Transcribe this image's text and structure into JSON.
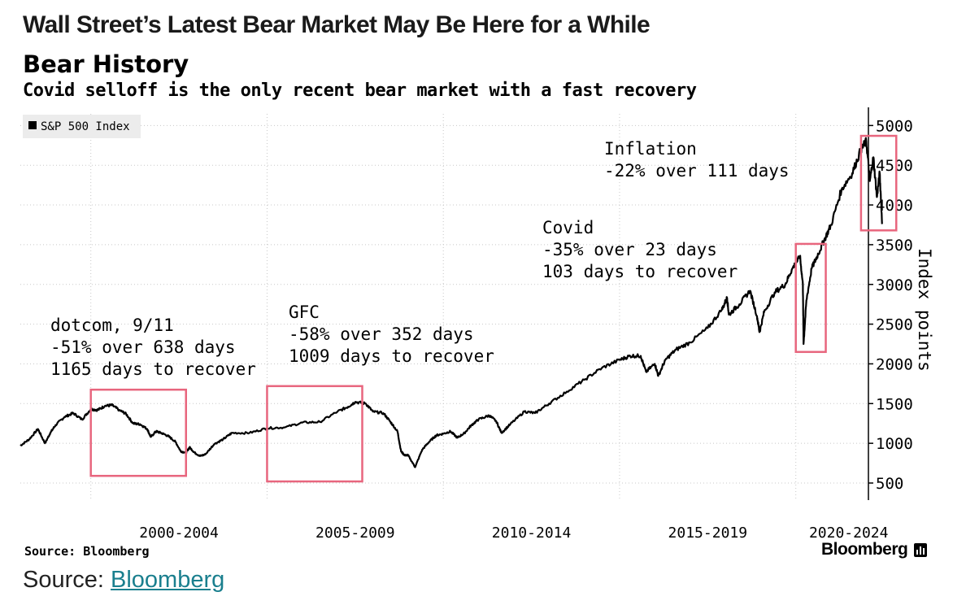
{
  "page": {
    "headline": "Wall Street’s Latest Bear Market May Be Here for a While",
    "source_note": "Source: Bloomberg",
    "brand": "Bloomberg",
    "brand_icon": "bar-chart-icon",
    "caption_prefix": "Source:",
    "caption_link": "Bloomberg",
    "colors": {
      "line": "#000000",
      "box": "#e8667e",
      "grid": "#c8c8c8",
      "legend_bg": "#ececec",
      "link": "#1a7f8e"
    }
  },
  "chart_data": {
    "type": "line",
    "title": "Bear History",
    "subtitle": "Covid selloff is the only recent bear market with a fast recovery",
    "ylabel": "Index points",
    "xlabel": "",
    "ylim": [
      500,
      5000
    ],
    "yticks": [
      500,
      1000,
      1500,
      2000,
      2500,
      3000,
      3500,
      4000,
      4500,
      5000
    ],
    "xlim": [
      1998.0,
      2022.5
    ],
    "xticks": [
      {
        "label": "2000-2004",
        "x": 2002.5
      },
      {
        "label": "2005-2009",
        "x": 2007.5
      },
      {
        "label": "2010-2014",
        "x": 2012.5
      },
      {
        "label": "2015-2019",
        "x": 2017.5
      },
      {
        "label": "2020-2024",
        "x": 2021.5
      }
    ],
    "grid": true,
    "legend": {
      "placement": "top-left",
      "entries": [
        "S&P 500 Index"
      ]
    },
    "series": [
      {
        "name": "S&P 500 Index",
        "x": [
          1998.0,
          1998.25,
          1998.5,
          1998.7,
          1998.85,
          1999.0,
          1999.25,
          1999.5,
          1999.75,
          2000.0,
          2000.2,
          2000.4,
          2000.6,
          2000.8,
          2001.0,
          2001.2,
          2001.4,
          2001.6,
          2001.7,
          2001.85,
          2002.0,
          2002.2,
          2002.4,
          2002.55,
          2002.7,
          2002.8,
          2002.95,
          2003.1,
          2003.25,
          2003.5,
          2003.75,
          2004.0,
          2004.5,
          2005.0,
          2005.5,
          2006.0,
          2006.5,
          2007.0,
          2007.3,
          2007.5,
          2007.8,
          2008.0,
          2008.3,
          2008.5,
          2008.7,
          2008.8,
          2008.9,
          2009.0,
          2009.2,
          2009.4,
          2009.6,
          2009.8,
          2010.0,
          2010.2,
          2010.4,
          2010.6,
          2010.8,
          2011.0,
          2011.3,
          2011.5,
          2011.65,
          2011.9,
          2012.3,
          2012.6,
          2013.0,
          2013.5,
          2014.0,
          2014.5,
          2015.0,
          2015.3,
          2015.6,
          2015.75,
          2016.0,
          2016.1,
          2016.3,
          2016.6,
          2017.0,
          2017.5,
          2017.9,
          2018.05,
          2018.1,
          2018.4,
          2018.7,
          2018.9,
          2018.97,
          2019.1,
          2019.4,
          2019.7,
          2019.9,
          2020.12,
          2020.2,
          2020.22,
          2020.3,
          2020.45,
          2020.6,
          2020.8,
          2021.0,
          2021.3,
          2021.6,
          2021.85,
          2022.0,
          2022.1,
          2022.2,
          2022.3,
          2022.38,
          2022.45
        ],
        "values": [
          970,
          1050,
          1180,
          1000,
          1130,
          1230,
          1330,
          1380,
          1300,
          1430,
          1420,
          1470,
          1480,
          1420,
          1370,
          1250,
          1240,
          1180,
          1080,
          1150,
          1130,
          1090,
          1020,
          900,
          880,
          950,
          880,
          840,
          860,
          990,
          1050,
          1130,
          1130,
          1190,
          1200,
          1260,
          1270,
          1400,
          1460,
          1520,
          1500,
          1400,
          1380,
          1270,
          1150,
          900,
          850,
          850,
          700,
          920,
          1020,
          1100,
          1120,
          1150,
          1070,
          1130,
          1230,
          1300,
          1350,
          1280,
          1130,
          1240,
          1400,
          1380,
          1500,
          1650,
          1800,
          1950,
          2050,
          2100,
          2100,
          1900,
          2000,
          1850,
          2050,
          2180,
          2270,
          2450,
          2680,
          2830,
          2620,
          2750,
          2920,
          2600,
          2400,
          2650,
          2900,
          3000,
          3200,
          3350,
          3000,
          2250,
          2800,
          3200,
          3350,
          3550,
          3750,
          4200,
          4400,
          4700,
          4800,
          4300,
          4600,
          4100,
          4400,
          3760
        ]
      }
    ],
    "annotations": [
      {
        "lines": [
          "dotcom, 9/11",
          "-51% over 638 days",
          "1165 days to recover"
        ],
        "box_x": [
          2000.0,
          2002.7
        ],
        "box_y": [
          590,
          1675
        ]
      },
      {
        "lines": [
          "GFC",
          "-58% over 352 days",
          "1009 days to recover"
        ],
        "box_x": [
          2005.0,
          2007.7
        ],
        "box_y": [
          520,
          1720
        ]
      },
      {
        "lines": [
          "Covid",
          "-35% over 23 days",
          "103 days to recover"
        ],
        "box_x": [
          2020.0,
          2020.85
        ],
        "box_y": [
          2150,
          3510
        ]
      },
      {
        "lines": [
          "Inflation",
          "-22% over 111 days"
        ],
        "box_x": [
          2021.85,
          2022.85
        ],
        "box_y": [
          3680,
          4870
        ]
      }
    ]
  }
}
